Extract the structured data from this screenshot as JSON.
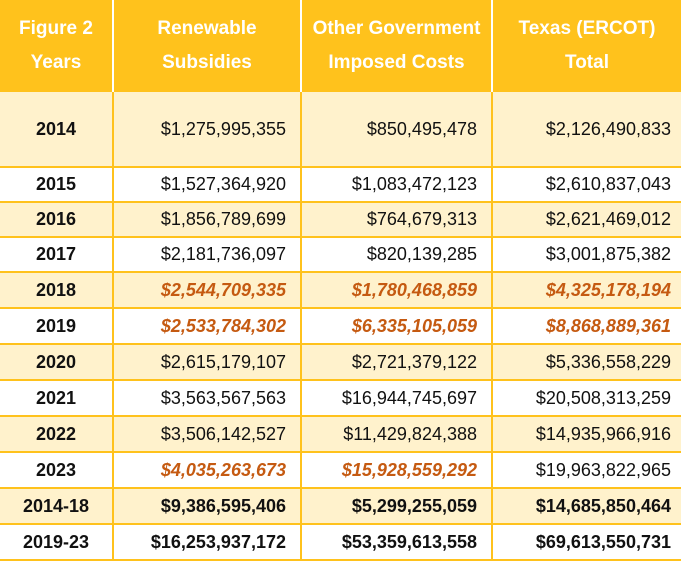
{
  "header": {
    "col0": [
      "Figure 2",
      "Years"
    ],
    "col1": [
      "Renewable",
      "Subsidies"
    ],
    "col2": [
      "Other Government",
      "Imposed Costs"
    ],
    "col3": [
      "Texas (ERCOT)",
      "Total"
    ]
  },
  "rows": [
    {
      "year": "2014",
      "renewable": "$1,275,995,355",
      "other": "$850,495,478",
      "total": "$2,126,490,833"
    },
    {
      "year": "2015",
      "renewable": "$1,527,364,920",
      "other": "$1,083,472,123",
      "total": "$2,610,837,043"
    },
    {
      "year": "2016",
      "renewable": "$1,856,789,699",
      "other": "$764,679,313",
      "total": "$2,621,469,012"
    },
    {
      "year": "2017",
      "renewable": "$2,181,736,097",
      "other": "$820,139,285",
      "total": "$3,001,875,382"
    },
    {
      "year": "2018",
      "renewable": "$2,544,709,335",
      "other": "$1,780,468,859",
      "total": "$4,325,178,194"
    },
    {
      "year": "2019",
      "renewable": "$2,533,784,302",
      "other": "$6,335,105,059",
      "total": "$8,868,889,361"
    },
    {
      "year": "2020",
      "renewable": "$2,615,179,107",
      "other": "$2,721,379,122",
      "total": "$5,336,558,229"
    },
    {
      "year": "2021",
      "renewable": "$3,563,567,563",
      "other": "$16,944,745,697",
      "total": "$20,508,313,259"
    },
    {
      "year": "2022",
      "renewable": "$3,506,142,527",
      "other": "$11,429,824,388",
      "total": "$14,935,966,916"
    },
    {
      "year": "2023",
      "renewable": "$4,035,263,673",
      "other": "$15,928,559,292",
      "total": "$19,963,822,965"
    },
    {
      "year": "2014-18",
      "renewable": "$9,386,595,406",
      "other": "$5,299,255,059",
      "total": "$14,685,850,464"
    },
    {
      "year": "2019-23",
      "renewable": "$16,253,937,172",
      "other": "$53,359,613,558",
      "total": "$69,613,550,731"
    }
  ],
  "colors": {
    "header_bg": "#ffc21c",
    "band_bg": "#fff2cc",
    "highlight_text": "#c55a11"
  }
}
